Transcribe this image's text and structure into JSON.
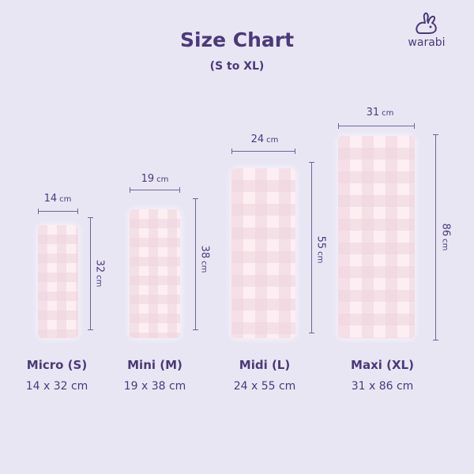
{
  "header": {
    "title": "Size Chart",
    "subtitle": "(S to XL)"
  },
  "brand": {
    "name": "warabi",
    "logo_icon": "rabbit-icon"
  },
  "colors": {
    "background": "#e9e6f4",
    "text": "#4a3a7a",
    "pad": "#fdeef2"
  },
  "unit": "cm",
  "sizes": [
    {
      "name": "Micro (S)",
      "dims": "14 x 32 cm",
      "width": "14",
      "height": "32"
    },
    {
      "name": "Mini (M)",
      "dims": "19 x 38 cm",
      "width": "19",
      "height": "38"
    },
    {
      "name": "Midi (L)",
      "dims": "24 x 55 cm",
      "width": "24",
      "height": "55"
    },
    {
      "name": "Maxi (XL)",
      "dims": "31 x 86 cm",
      "width": "31",
      "height": "86"
    }
  ]
}
